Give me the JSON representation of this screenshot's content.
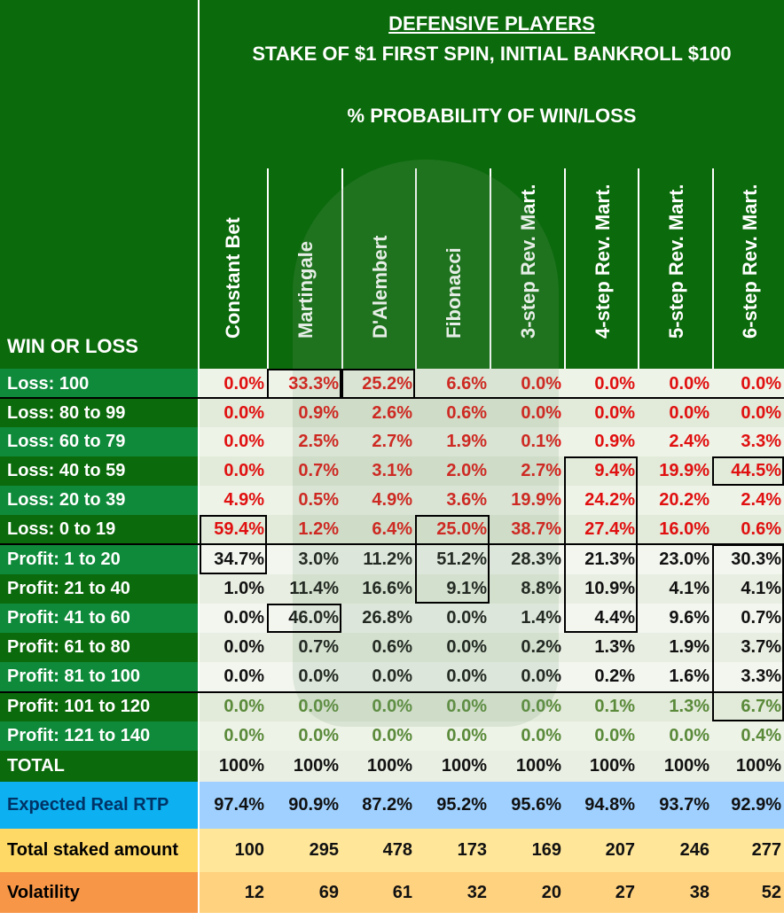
{
  "title": "DEFENSIVE PLAYERS",
  "subtitle": "STAKE OF $1 FIRST SPIN, INITIAL BANKROLL $100",
  "section_title": "% PROBABILITY OF WIN/LOSS",
  "corner_label": "WIN OR LOSS",
  "colors": {
    "header_green": "#0b6a0b",
    "loss_red": "#e01010",
    "rtp_blue": "#99ccff",
    "staked_yellow": "#ffe599",
    "volatility_orange": "#f4b183"
  },
  "chart_data": {
    "type": "table",
    "columns": [
      "Constant Bet",
      "Martingale",
      "D'Alembert",
      "Fibonacci",
      "3-step Rev. Mart.",
      "4-step Rev. Mart.",
      "5-step Rev. Mart.",
      "6-step Rev. Mart."
    ],
    "rows": [
      {
        "label": "Loss: 100",
        "kind": "loss",
        "values": [
          "0.0%",
          "33.3%",
          "25.2%",
          "6.6%",
          "0.0%",
          "0.0%",
          "0.0%",
          "0.0%"
        ]
      },
      {
        "label": "Loss: 80 to 99",
        "kind": "loss",
        "values": [
          "0.0%",
          "0.9%",
          "2.6%",
          "0.6%",
          "0.0%",
          "0.0%",
          "0.0%",
          "0.0%"
        ]
      },
      {
        "label": "Loss: 60 to 79",
        "kind": "loss",
        "values": [
          "0.0%",
          "2.5%",
          "2.7%",
          "1.9%",
          "0.1%",
          "0.9%",
          "2.4%",
          "3.3%"
        ]
      },
      {
        "label": "Loss: 40 to 59",
        "kind": "loss",
        "values": [
          "0.0%",
          "0.7%",
          "3.1%",
          "2.0%",
          "2.7%",
          "9.4%",
          "19.9%",
          "44.5%"
        ]
      },
      {
        "label": "Loss: 20 to 39",
        "kind": "loss",
        "values": [
          "4.9%",
          "0.5%",
          "4.9%",
          "3.6%",
          "19.9%",
          "24.2%",
          "20.2%",
          "2.4%"
        ]
      },
      {
        "label": "Loss: 0 to 19",
        "kind": "loss",
        "values": [
          "59.4%",
          "1.2%",
          "6.4%",
          "25.0%",
          "38.7%",
          "27.4%",
          "16.0%",
          "0.6%"
        ]
      },
      {
        "label": "Profit: 1 to 20",
        "kind": "profit",
        "values": [
          "34.7%",
          "3.0%",
          "11.2%",
          "51.2%",
          "28.3%",
          "21.3%",
          "23.0%",
          "30.3%"
        ]
      },
      {
        "label": "Profit: 21 to 40",
        "kind": "profit",
        "values": [
          "1.0%",
          "11.4%",
          "16.6%",
          "9.1%",
          "8.8%",
          "10.9%",
          "4.1%",
          "4.1%"
        ]
      },
      {
        "label": "Profit: 41 to 60",
        "kind": "profit",
        "values": [
          "0.0%",
          "46.0%",
          "26.8%",
          "0.0%",
          "1.4%",
          "4.4%",
          "9.6%",
          "0.7%"
        ]
      },
      {
        "label": "Profit: 61 to 80",
        "kind": "profit",
        "values": [
          "0.0%",
          "0.7%",
          "0.6%",
          "0.0%",
          "0.2%",
          "1.3%",
          "1.9%",
          "3.7%"
        ]
      },
      {
        "label": "Profit: 81 to 100",
        "kind": "profit",
        "values": [
          "0.0%",
          "0.0%",
          "0.0%",
          "0.0%",
          "0.0%",
          "0.2%",
          "1.6%",
          "3.3%"
        ]
      },
      {
        "label": "Profit: 101 to 120",
        "kind": "dim",
        "values": [
          "0.0%",
          "0.0%",
          "0.0%",
          "0.0%",
          "0.0%",
          "0.1%",
          "1.3%",
          "6.7%"
        ]
      },
      {
        "label": "Profit: 121 to 140",
        "kind": "dim",
        "values": [
          "0.0%",
          "0.0%",
          "0.0%",
          "0.0%",
          "0.0%",
          "0.0%",
          "0.0%",
          "0.4%"
        ]
      },
      {
        "label": "TOTAL",
        "kind": "total",
        "values": [
          "100%",
          "100%",
          "100%",
          "100%",
          "100%",
          "100%",
          "100%",
          "100%"
        ]
      },
      {
        "label": "Expected Real RTP",
        "kind": "rtp",
        "values": [
          "97.4%",
          "90.9%",
          "87.2%",
          "95.2%",
          "95.6%",
          "94.8%",
          "93.7%",
          "92.9%"
        ]
      },
      {
        "label": "Total staked amount",
        "kind": "staked",
        "values": [
          "100",
          "295",
          "478",
          "173",
          "169",
          "207",
          "246",
          "277"
        ]
      },
      {
        "label": "Volatility",
        "kind": "volatility",
        "values": [
          "12",
          "69",
          "61",
          "32",
          "20",
          "27",
          "38",
          "52"
        ]
      }
    ]
  }
}
